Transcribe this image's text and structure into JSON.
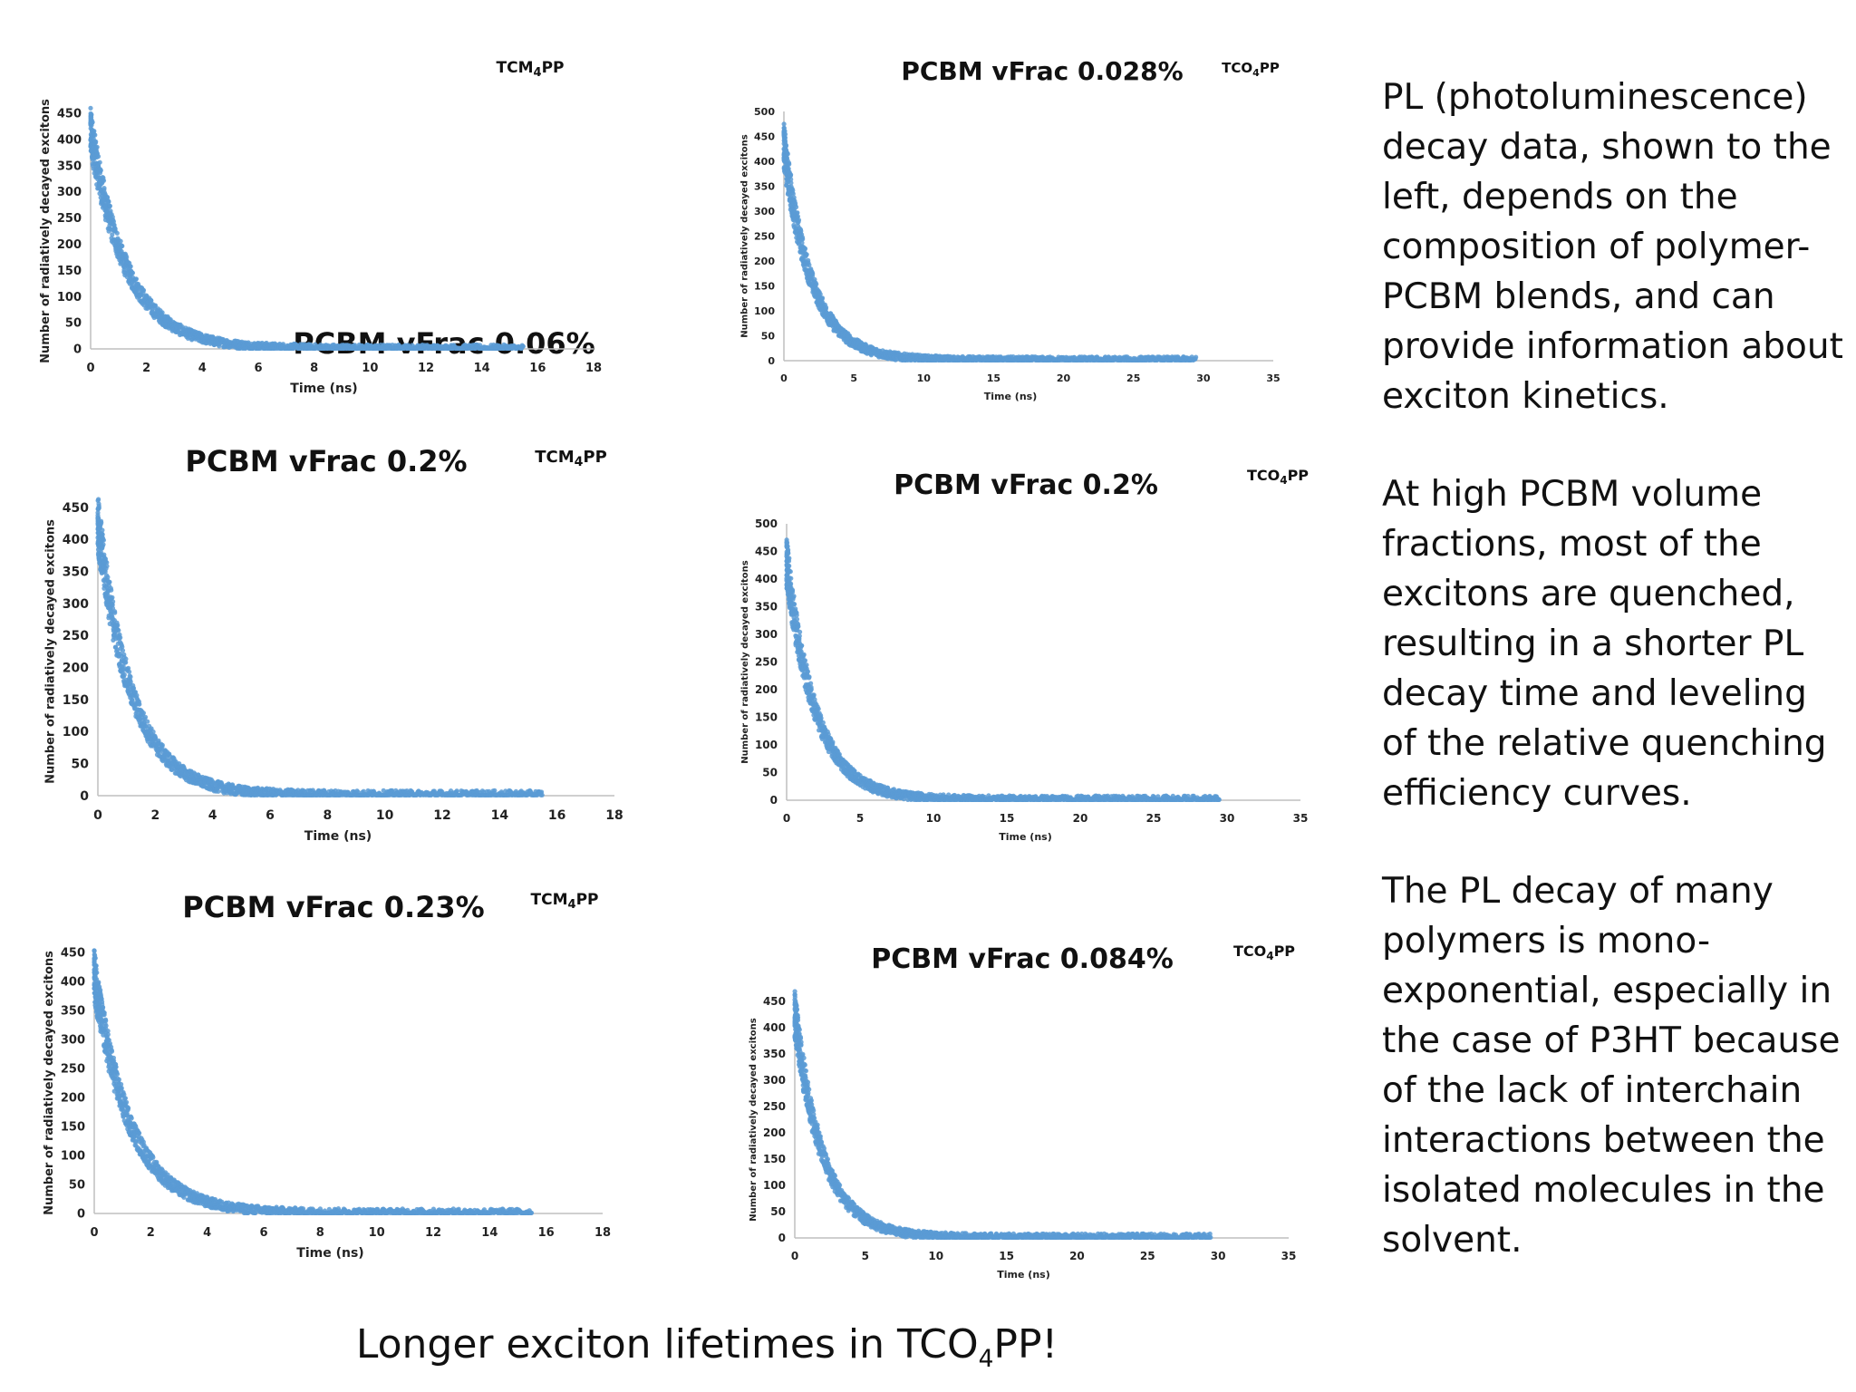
{
  "chart_data": [
    {
      "type": "scatter",
      "title": "PCBM vFrac 0.06%",
      "tag": {
        "main": "TCM",
        "sub": "4",
        "tail": "PP"
      },
      "xlabel": "Time (ns)",
      "ylabel": "Number of radiatively decayed excitons",
      "xlim": [
        0,
        18
      ],
      "ylim": [
        0,
        450
      ],
      "xticks": [
        0,
        2,
        4,
        6,
        8,
        10,
        12,
        14,
        16,
        18
      ],
      "yticks": [
        0,
        50,
        100,
        150,
        200,
        250,
        300,
        350,
        400,
        450
      ],
      "series": [
        {
          "amplitude": 415,
          "tau_ns": 1.3,
          "x_end": 15.5
        }
      ],
      "color": "#5b9bd5"
    },
    {
      "type": "scatter",
      "title": "PCBM vFrac 0.028%",
      "tag": {
        "main": "TCO",
        "sub": "4",
        "tail": "PP"
      },
      "xlabel": "Time (ns)",
      "ylabel": "Number of radiatively decayed excitons",
      "xlim": [
        0,
        35
      ],
      "ylim": [
        0,
        500
      ],
      "xticks": [
        0,
        5,
        10,
        15,
        20,
        25,
        30,
        35
      ],
      "yticks": [
        0,
        50,
        100,
        150,
        200,
        250,
        300,
        350,
        400,
        450,
        500
      ],
      "series": [
        {
          "amplitude": 430,
          "tau_ns": 2.0,
          "x_end": 29.5
        }
      ],
      "color": "#5b9bd5"
    },
    {
      "type": "scatter",
      "title": "PCBM vFrac 0.2%",
      "tag": {
        "main": "TCM",
        "sub": "4",
        "tail": "PP"
      },
      "xlabel": "Time (ns)",
      "ylabel": "Number of radiatively decayed excitons",
      "xlim": [
        0,
        18
      ],
      "ylim": [
        0,
        450
      ],
      "xticks": [
        0,
        2,
        4,
        6,
        8,
        10,
        12,
        14,
        16,
        18
      ],
      "yticks": [
        0,
        50,
        100,
        150,
        200,
        250,
        300,
        350,
        400,
        450
      ],
      "series": [
        {
          "amplitude": 425,
          "tau_ns": 1.2,
          "x_end": 15.5
        }
      ],
      "color": "#5b9bd5"
    },
    {
      "type": "scatter",
      "title": "PCBM vFrac 0.2%",
      "tag": {
        "main": "TCO",
        "sub": "4",
        "tail": "PP"
      },
      "xlabel": "Time (ns)",
      "ylabel": "Number of radiatively decayed excitons",
      "xlim": [
        0,
        35
      ],
      "ylim": [
        0,
        500
      ],
      "xticks": [
        0,
        5,
        10,
        15,
        20,
        25,
        30,
        35
      ],
      "yticks": [
        0,
        50,
        100,
        150,
        200,
        250,
        300,
        350,
        400,
        450,
        500
      ],
      "series": [
        {
          "amplitude": 430,
          "tau_ns": 2.0,
          "x_end": 29.5
        }
      ],
      "color": "#5b9bd5"
    },
    {
      "type": "scatter",
      "title": "PCBM vFrac 0.23%",
      "tag": {
        "main": "TCM",
        "sub": "4",
        "tail": "PP"
      },
      "xlabel": "Time (ns)",
      "ylabel": "Number of radiatively decayed excitons",
      "xlim": [
        0,
        18
      ],
      "ylim": [
        0,
        450
      ],
      "xticks": [
        0,
        2,
        4,
        6,
        8,
        10,
        12,
        14,
        16,
        18
      ],
      "yticks": [
        0,
        50,
        100,
        150,
        200,
        250,
        300,
        350,
        400,
        450
      ],
      "series": [
        {
          "amplitude": 410,
          "tau_ns": 1.3,
          "x_end": 15.5
        }
      ],
      "color": "#5b9bd5"
    },
    {
      "type": "scatter",
      "title": "PCBM vFrac 0.084%",
      "tag": {
        "main": "TCO",
        "sub": "4",
        "tail": "PP"
      },
      "xlabel": "Time (ns)",
      "ylabel": "Number of radiatively decayed excitons",
      "xlim": [
        0,
        35
      ],
      "ylim": [
        0,
        450
      ],
      "xticks": [
        0,
        5,
        10,
        15,
        20,
        25,
        30,
        35
      ],
      "yticks": [
        0,
        50,
        100,
        150,
        200,
        250,
        300,
        350,
        400,
        450
      ],
      "series": [
        {
          "amplitude": 425,
          "tau_ns": 2.0,
          "x_end": 29.5
        }
      ],
      "color": "#5b9bd5"
    }
  ],
  "side_text": [
    "PL (photoluminescence) decay data, shown to the left, depends on the composition of polymer-PCBM blends, and can provide information about exciton kinetics.",
    "At high PCBM volume fractions, most of the excitons are quenched, resulting in a shorter PL decay time and leveling of the relative quenching efficiency curves.",
    "The PL decay of many polymers is mono-exponential, especially in the case of P3HT because of the lack of interchain interactions between the isolated molecules in the solvent."
  ],
  "footer": {
    "pre": "Longer exciton lifetimes in TCO",
    "sub": "4",
    "post": "PP!"
  }
}
